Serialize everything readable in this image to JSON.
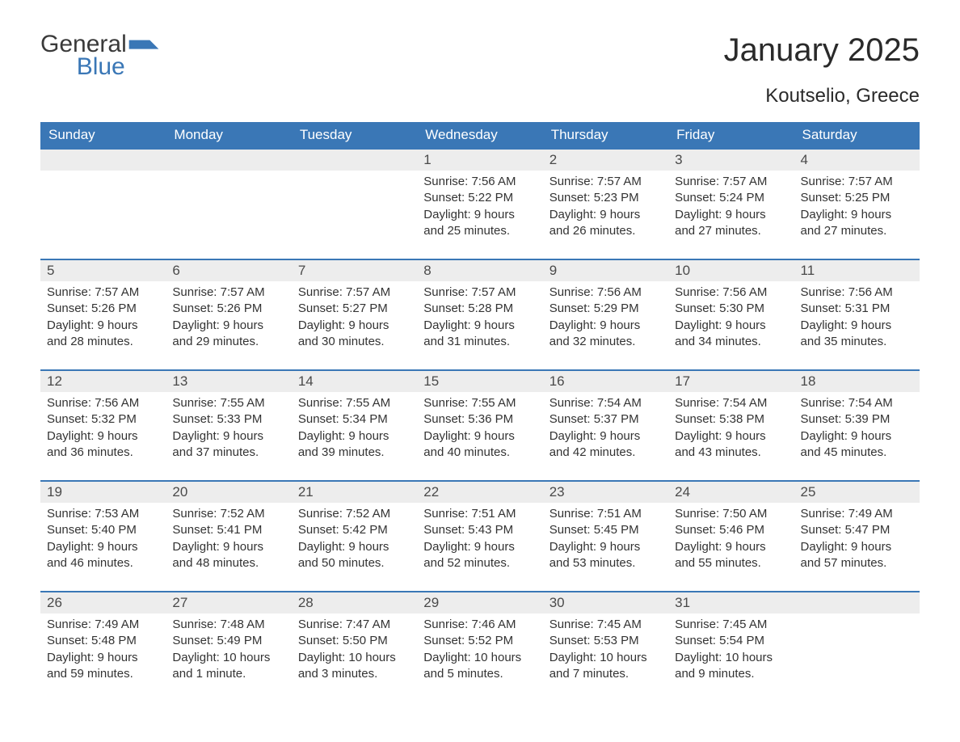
{
  "brand": {
    "word1": "General",
    "word2": "Blue",
    "flag_color": "#3a77b6"
  },
  "title": "January 2025",
  "location": "Koutselio, Greece",
  "colors": {
    "header_bg": "#3a77b6",
    "header_text": "#ffffff",
    "week_border": "#3a77b6",
    "daynum_bg": "#ededed",
    "daynum_text": "#4a4a4a",
    "body_text": "#333333",
    "page_bg": "#ffffff"
  },
  "typography": {
    "title_fontsize": 40,
    "location_fontsize": 24,
    "th_fontsize": 17,
    "daynum_fontsize": 17,
    "cell_fontsize": 15,
    "font_family": "Arial"
  },
  "layout": {
    "columns": 7,
    "weeks": 5,
    "start_day": "Sunday"
  },
  "day_headers": [
    "Sunday",
    "Monday",
    "Tuesday",
    "Wednesday",
    "Thursday",
    "Friday",
    "Saturday"
  ],
  "labels": {
    "sunrise": "Sunrise:",
    "sunset": "Sunset:",
    "daylight": "Daylight:"
  },
  "weeks": [
    [
      {
        "empty": true
      },
      {
        "empty": true
      },
      {
        "empty": true
      },
      {
        "n": "1",
        "sunrise": "7:56 AM",
        "sunset": "5:22 PM",
        "daylight": "9 hours and 25 minutes."
      },
      {
        "n": "2",
        "sunrise": "7:57 AM",
        "sunset": "5:23 PM",
        "daylight": "9 hours and 26 minutes."
      },
      {
        "n": "3",
        "sunrise": "7:57 AM",
        "sunset": "5:24 PM",
        "daylight": "9 hours and 27 minutes."
      },
      {
        "n": "4",
        "sunrise": "7:57 AM",
        "sunset": "5:25 PM",
        "daylight": "9 hours and 27 minutes."
      }
    ],
    [
      {
        "n": "5",
        "sunrise": "7:57 AM",
        "sunset": "5:26 PM",
        "daylight": "9 hours and 28 minutes."
      },
      {
        "n": "6",
        "sunrise": "7:57 AM",
        "sunset": "5:26 PM",
        "daylight": "9 hours and 29 minutes."
      },
      {
        "n": "7",
        "sunrise": "7:57 AM",
        "sunset": "5:27 PM",
        "daylight": "9 hours and 30 minutes."
      },
      {
        "n": "8",
        "sunrise": "7:57 AM",
        "sunset": "5:28 PM",
        "daylight": "9 hours and 31 minutes."
      },
      {
        "n": "9",
        "sunrise": "7:56 AM",
        "sunset": "5:29 PM",
        "daylight": "9 hours and 32 minutes."
      },
      {
        "n": "10",
        "sunrise": "7:56 AM",
        "sunset": "5:30 PM",
        "daylight": "9 hours and 34 minutes."
      },
      {
        "n": "11",
        "sunrise": "7:56 AM",
        "sunset": "5:31 PM",
        "daylight": "9 hours and 35 minutes."
      }
    ],
    [
      {
        "n": "12",
        "sunrise": "7:56 AM",
        "sunset": "5:32 PM",
        "daylight": "9 hours and 36 minutes."
      },
      {
        "n": "13",
        "sunrise": "7:55 AM",
        "sunset": "5:33 PM",
        "daylight": "9 hours and 37 minutes."
      },
      {
        "n": "14",
        "sunrise": "7:55 AM",
        "sunset": "5:34 PM",
        "daylight": "9 hours and 39 minutes."
      },
      {
        "n": "15",
        "sunrise": "7:55 AM",
        "sunset": "5:36 PM",
        "daylight": "9 hours and 40 minutes."
      },
      {
        "n": "16",
        "sunrise": "7:54 AM",
        "sunset": "5:37 PM",
        "daylight": "9 hours and 42 minutes."
      },
      {
        "n": "17",
        "sunrise": "7:54 AM",
        "sunset": "5:38 PM",
        "daylight": "9 hours and 43 minutes."
      },
      {
        "n": "18",
        "sunrise": "7:54 AM",
        "sunset": "5:39 PM",
        "daylight": "9 hours and 45 minutes."
      }
    ],
    [
      {
        "n": "19",
        "sunrise": "7:53 AM",
        "sunset": "5:40 PM",
        "daylight": "9 hours and 46 minutes."
      },
      {
        "n": "20",
        "sunrise": "7:52 AM",
        "sunset": "5:41 PM",
        "daylight": "9 hours and 48 minutes."
      },
      {
        "n": "21",
        "sunrise": "7:52 AM",
        "sunset": "5:42 PM",
        "daylight": "9 hours and 50 minutes."
      },
      {
        "n": "22",
        "sunrise": "7:51 AM",
        "sunset": "5:43 PM",
        "daylight": "9 hours and 52 minutes."
      },
      {
        "n": "23",
        "sunrise": "7:51 AM",
        "sunset": "5:45 PM",
        "daylight": "9 hours and 53 minutes."
      },
      {
        "n": "24",
        "sunrise": "7:50 AM",
        "sunset": "5:46 PM",
        "daylight": "9 hours and 55 minutes."
      },
      {
        "n": "25",
        "sunrise": "7:49 AM",
        "sunset": "5:47 PM",
        "daylight": "9 hours and 57 minutes."
      }
    ],
    [
      {
        "n": "26",
        "sunrise": "7:49 AM",
        "sunset": "5:48 PM",
        "daylight": "9 hours and 59 minutes."
      },
      {
        "n": "27",
        "sunrise": "7:48 AM",
        "sunset": "5:49 PM",
        "daylight": "10 hours and 1 minute."
      },
      {
        "n": "28",
        "sunrise": "7:47 AM",
        "sunset": "5:50 PM",
        "daylight": "10 hours and 3 minutes."
      },
      {
        "n": "29",
        "sunrise": "7:46 AM",
        "sunset": "5:52 PM",
        "daylight": "10 hours and 5 minutes."
      },
      {
        "n": "30",
        "sunrise": "7:45 AM",
        "sunset": "5:53 PM",
        "daylight": "10 hours and 7 minutes."
      },
      {
        "n": "31",
        "sunrise": "7:45 AM",
        "sunset": "5:54 PM",
        "daylight": "10 hours and 9 minutes."
      },
      {
        "empty": true
      }
    ]
  ]
}
